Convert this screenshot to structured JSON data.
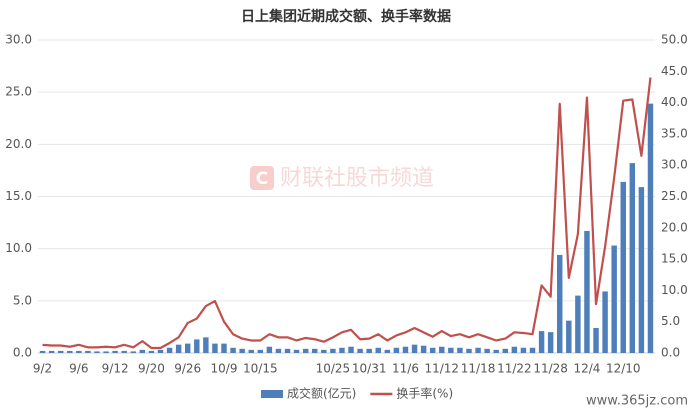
{
  "chart_data": {
    "type": "bar_line",
    "title": "日上集团近期成交额、换手率数据",
    "watermark": "财联社股市频道",
    "footer_watermark": "www.365jz.com",
    "categories": [
      "9/2",
      null,
      null,
      null,
      "9/6",
      null,
      null,
      null,
      "9/12",
      null,
      null,
      null,
      "9/20",
      null,
      null,
      null,
      "9/26",
      null,
      null,
      null,
      "10/9",
      null,
      null,
      null,
      "10/15",
      null,
      null,
      null,
      null,
      null,
      null,
      null,
      "10/25",
      null,
      null,
      null,
      "10/31",
      null,
      null,
      null,
      "11/6",
      null,
      null,
      null,
      "11/12",
      null,
      null,
      null,
      "11/18",
      null,
      null,
      null,
      "11/22",
      null,
      null,
      null,
      "11/28",
      null,
      null,
      null,
      "12/4",
      null,
      null,
      null,
      "12/10",
      null,
      null,
      null
    ],
    "series": [
      {
        "name": "成交额(亿元)",
        "kind": "bar",
        "axis": "y",
        "color": "#4f7fba",
        "values": [
          0.2,
          0.2,
          0.2,
          0.2,
          0.2,
          0.2,
          0.15,
          0.15,
          0.2,
          0.2,
          0.15,
          0.3,
          0.2,
          0.3,
          0.5,
          0.8,
          0.9,
          1.3,
          1.5,
          0.9,
          0.9,
          0.5,
          0.4,
          0.3,
          0.3,
          0.6,
          0.4,
          0.4,
          0.3,
          0.4,
          0.4,
          0.3,
          0.4,
          0.5,
          0.6,
          0.4,
          0.4,
          0.5,
          0.3,
          0.5,
          0.6,
          0.8,
          0.7,
          0.5,
          0.6,
          0.5,
          0.5,
          0.4,
          0.5,
          0.4,
          0.3,
          0.4,
          0.6,
          0.5,
          0.5,
          2.1,
          2.0,
          9.4,
          3.1,
          5.5,
          11.7,
          2.4,
          5.9,
          10.3,
          16.4,
          18.2,
          15.9,
          23.9
        ]
      },
      {
        "name": "换手率(%)",
        "kind": "line",
        "axis": "y2",
        "color": "#c0504d",
        "values": [
          1.3,
          1.2,
          1.2,
          1.0,
          1.3,
          0.9,
          0.9,
          1.0,
          0.9,
          1.3,
          0.9,
          1.9,
          0.8,
          0.8,
          1.6,
          2.5,
          4.8,
          5.5,
          7.5,
          8.3,
          5.0,
          3.0,
          2.3,
          2.0,
          2.0,
          3.0,
          2.5,
          2.5,
          2.0,
          2.4,
          2.2,
          1.8,
          2.5,
          3.3,
          3.7,
          2.2,
          2.3,
          3.0,
          2.0,
          2.8,
          3.3,
          4.0,
          3.3,
          2.6,
          3.5,
          2.7,
          3.0,
          2.5,
          3.0,
          2.5,
          2.0,
          2.3,
          3.3,
          3.2,
          3.0,
          10.8,
          9.0,
          39.8,
          12.0,
          19.0,
          40.8,
          7.8,
          17.0,
          28.0,
          40.3,
          40.5,
          31.5,
          44.0
        ]
      }
    ],
    "ylim": [
      0,
      30
    ],
    "yticks": [
      {
        "value": 0,
        "label": "0.0"
      },
      {
        "value": 5,
        "label": "5.0"
      },
      {
        "value": 10,
        "label": "10.0"
      },
      {
        "value": 15,
        "label": "15.0"
      },
      {
        "value": 20,
        "label": "20.0"
      },
      {
        "value": 25,
        "label": "25.0"
      },
      {
        "value": 30,
        "label": "30.0"
      }
    ],
    "y2lim": [
      0,
      50
    ],
    "y2ticks": [
      {
        "value": 0,
        "label": "0.0"
      },
      {
        "value": 5,
        "label": "5.0"
      },
      {
        "value": 10,
        "label": "10.0"
      },
      {
        "value": 15,
        "label": "15.0"
      },
      {
        "value": 20,
        "label": "20.0"
      },
      {
        "value": 25,
        "label": "25.0"
      },
      {
        "value": 30,
        "label": "30.0"
      },
      {
        "value": 35,
        "label": "35.0"
      },
      {
        "value": 40,
        "label": "40.0"
      },
      {
        "value": 45,
        "label": "45.0"
      },
      {
        "value": 50,
        "label": "50.0"
      }
    ],
    "grid": true,
    "legend": "bottom"
  }
}
